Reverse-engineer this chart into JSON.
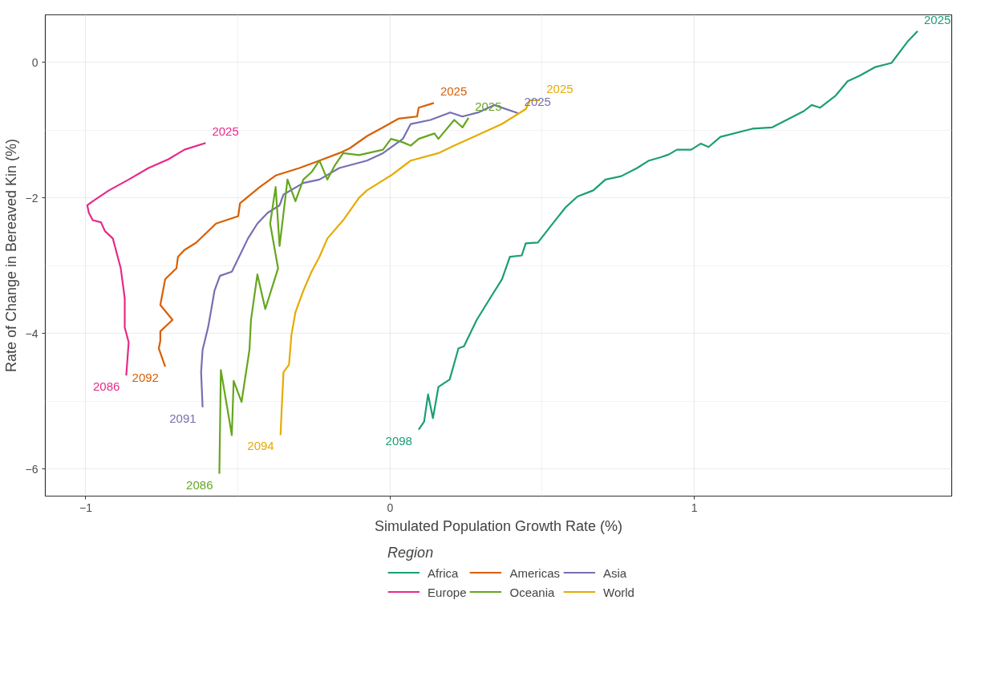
{
  "chart_data": {
    "type": "line",
    "xlabel": "Simulated Population Growth Rate (%)",
    "ylabel": "Rate of Change in Bereaved Kin (%)",
    "legend_title": "Region",
    "legend": "bottom",
    "grid": true,
    "xlim": [
      -1.133,
      1.846
    ],
    "ylim": [
      -6.4,
      0.7
    ],
    "xticks": [
      {
        "value": -1,
        "label": "−1"
      },
      0,
      1
    ],
    "yticks": [
      {
        "value": -6,
        "label": "−6"
      },
      {
        "value": -4,
        "label": "−4"
      },
      {
        "value": -2,
        "label": "−2"
      },
      0
    ],
    "series": [
      {
        "name": "Africa",
        "color": "#1b9e77",
        "x": [
          1.734,
          1.7,
          1.648,
          1.595,
          1.543,
          1.504,
          1.465,
          1.413,
          1.386,
          1.36,
          1.256,
          1.191,
          1.086,
          1.047,
          1.021,
          0.99,
          0.943,
          0.916,
          0.89,
          0.851,
          0.812,
          0.76,
          0.708,
          0.668,
          0.616,
          0.577,
          0.538,
          0.486,
          0.446,
          0.433,
          0.394,
          0.368,
          0.329,
          0.285,
          0.243,
          0.225,
          0.196,
          0.159,
          0.141,
          0.125,
          0.112,
          0.094
        ],
        "values": [
          0.46,
          0.3,
          -0.01,
          -0.07,
          -0.2,
          -0.28,
          -0.49,
          -0.67,
          -0.63,
          -0.72,
          -0.96,
          -0.98,
          -1.1,
          -1.25,
          -1.2,
          -1.29,
          -1.29,
          -1.36,
          -1.4,
          -1.45,
          -1.56,
          -1.68,
          -1.73,
          -1.89,
          -1.98,
          -2.14,
          -2.36,
          -2.66,
          -2.67,
          -2.85,
          -2.87,
          -3.2,
          -3.48,
          -3.8,
          -4.19,
          -4.22,
          -4.68,
          -4.79,
          -5.25,
          -4.9,
          -5.3,
          -5.42
        ]
      },
      {
        "name": "Americas",
        "color": "#d95f02",
        "x": [
          0.144,
          0.094,
          0.089,
          0.029,
          -0.023,
          -0.076,
          -0.133,
          -0.167,
          -0.232,
          -0.298,
          -0.376,
          -0.428,
          -0.493,
          -0.499,
          -0.572,
          -0.637,
          -0.676,
          -0.697,
          -0.702,
          -0.739,
          -0.755,
          -0.715,
          -0.755,
          -0.755,
          -0.76,
          -0.739
        ],
        "values": [
          -0.6,
          -0.67,
          -0.8,
          -0.83,
          -0.96,
          -1.09,
          -1.27,
          -1.34,
          -1.45,
          -1.56,
          -1.67,
          -1.84,
          -2.08,
          -2.27,
          -2.38,
          -2.66,
          -2.77,
          -2.87,
          -3.04,
          -3.2,
          -3.58,
          -3.8,
          -3.97,
          -4.11,
          -4.22,
          -4.49
        ]
      },
      {
        "name": "Asia",
        "color": "#7570b3",
        "x": [
          0.42,
          0.342,
          0.29,
          0.238,
          0.198,
          0.133,
          0.068,
          0.042,
          -0.023,
          -0.076,
          -0.167,
          -0.232,
          -0.285,
          -0.35,
          -0.363,
          -0.402,
          -0.436,
          -0.467,
          -0.52,
          -0.559,
          -0.577,
          -0.585,
          -0.598,
          -0.616,
          -0.621,
          -0.616
        ],
        "values": [
          -0.75,
          -0.63,
          -0.74,
          -0.8,
          -0.74,
          -0.85,
          -0.91,
          -1.13,
          -1.34,
          -1.45,
          -1.56,
          -1.73,
          -1.78,
          -1.95,
          -2.11,
          -2.22,
          -2.38,
          -2.6,
          -3.09,
          -3.15,
          -3.37,
          -3.58,
          -3.91,
          -4.24,
          -4.57,
          -5.09
        ]
      },
      {
        "name": "Europe",
        "color": "#e7298a",
        "x": [
          -0.606,
          -0.676,
          -0.728,
          -0.794,
          -0.859,
          -0.924,
          -0.977,
          -0.995,
          -0.99,
          -0.977,
          -0.95,
          -0.937,
          -0.911,
          -0.898,
          -0.885,
          -0.872,
          -0.872,
          -0.859,
          -0.867
        ],
        "values": [
          -1.19,
          -1.29,
          -1.43,
          -1.56,
          -1.73,
          -1.89,
          -2.05,
          -2.11,
          -2.22,
          -2.33,
          -2.36,
          -2.49,
          -2.6,
          -2.82,
          -3.04,
          -3.48,
          -3.91,
          -4.13,
          -4.62
        ]
      },
      {
        "name": "Oceania",
        "color": "#66a61e",
        "x": [
          0.258,
          0.238,
          0.211,
          0.159,
          0.146,
          0.094,
          0.068,
          0.042,
          0.003,
          -0.023,
          -0.102,
          -0.154,
          -0.18,
          -0.206,
          -0.232,
          -0.258,
          -0.285,
          -0.311,
          -0.337,
          -0.363,
          -0.376,
          -0.394,
          -0.368,
          -0.41,
          -0.436,
          -0.457,
          -0.462,
          -0.488,
          -0.514,
          -0.52,
          -0.556,
          -0.561
        ],
        "values": [
          -0.82,
          -0.96,
          -0.85,
          -1.13,
          -1.05,
          -1.13,
          -1.23,
          -1.18,
          -1.13,
          -1.29,
          -1.37,
          -1.34,
          -1.51,
          -1.73,
          -1.45,
          -1.62,
          -1.73,
          -2.05,
          -1.73,
          -2.71,
          -1.84,
          -2.38,
          -3.04,
          -3.64,
          -3.13,
          -3.8,
          -4.24,
          -5.01,
          -4.7,
          -5.5,
          -4.54,
          -6.07
        ]
      },
      {
        "name": "World",
        "color": "#e6ab02",
        "x": [
          0.493,
          0.46,
          0.446,
          0.368,
          0.29,
          0.211,
          0.159,
          0.068,
          0.003,
          -0.037,
          -0.076,
          -0.102,
          -0.154,
          -0.206,
          -0.232,
          -0.258,
          -0.285,
          -0.311,
          -0.324,
          -0.332,
          -0.35,
          -0.355,
          -0.36
        ],
        "values": [
          -0.56,
          -0.56,
          -0.69,
          -0.91,
          -1.07,
          -1.23,
          -1.34,
          -1.45,
          -1.67,
          -1.78,
          -1.89,
          -2.0,
          -2.33,
          -2.6,
          -2.87,
          -3.09,
          -3.37,
          -3.69,
          -4.02,
          -4.46,
          -4.57,
          -5.01,
          -5.5
        ]
      }
    ],
    "annotations": [
      {
        "text": "2025",
        "x": 1.734,
        "y": 0.46
      },
      {
        "text": "2098",
        "x": 0.094,
        "y": -5.42
      },
      {
        "text": "2025",
        "x": 0.144,
        "y": -0.6
      },
      {
        "text": "2092",
        "x": -0.739,
        "y": -4.49
      },
      {
        "text": "2025",
        "x": 0.42,
        "y": -0.75
      },
      {
        "text": "2091",
        "x": -0.616,
        "y": -5.09
      },
      {
        "text": "2025",
        "x": -0.606,
        "y": -1.19
      },
      {
        "text": "2086",
        "x": -0.867,
        "y": -4.62
      },
      {
        "text": "2025",
        "x": 0.258,
        "y": -0.82
      },
      {
        "text": "2086",
        "x": -0.561,
        "y": -6.07
      },
      {
        "text": "2025",
        "x": 0.493,
        "y": -0.56
      },
      {
        "text": "2094",
        "x": -0.36,
        "y": -5.5
      }
    ]
  }
}
